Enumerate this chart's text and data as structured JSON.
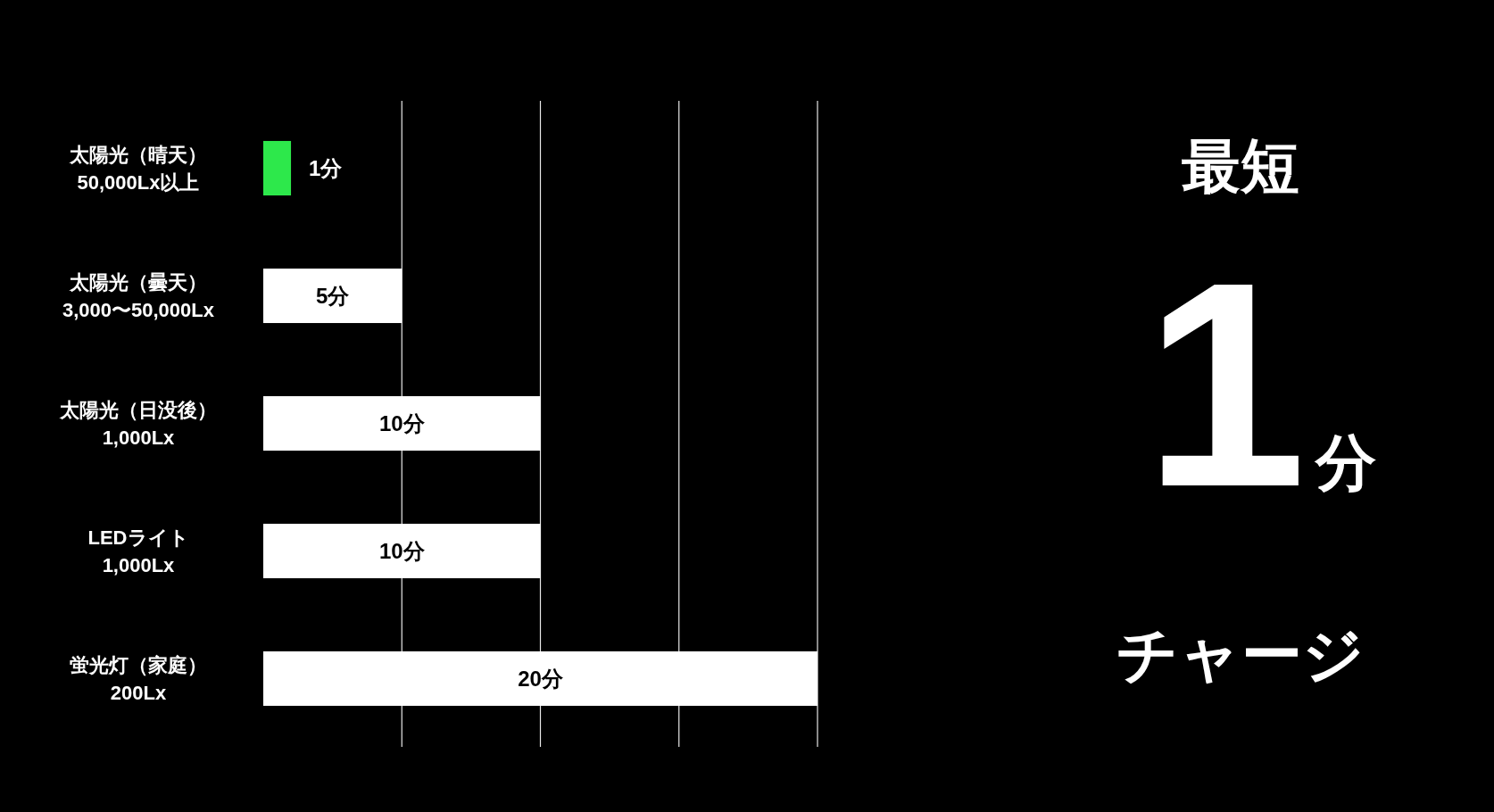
{
  "chart_data": {
    "type": "bar",
    "orientation": "horizontal",
    "categories": [
      "太陽光（晴天）\n50,000Lx以上",
      "太陽光（曇天）\n3,000〜50,000Lx",
      "太陽光（日没後）\n1,000Lx",
      "LEDライト\n1,000Lx",
      "蛍光灯（家庭）\n200Lx"
    ],
    "values": [
      1,
      5,
      10,
      10,
      20
    ],
    "colors": [
      "#2de84b",
      "#ffffff",
      "#ffffff",
      "#ffffff",
      "#ffffff"
    ],
    "value_labels": [
      "1分",
      "5分",
      "10分",
      "10分",
      "20分"
    ],
    "xlim": [
      0,
      20
    ],
    "xticks": [
      {
        "value": 5,
        "label": null
      },
      {
        "value": 10,
        "label": null
      },
      {
        "value": 15,
        "label": null
      },
      {
        "value": 20,
        "label": null
      }
    ],
    "grid": "x",
    "tick_labels": "y",
    "annotations": [
      "最短",
      "1",
      "分",
      "チャージ"
    ]
  }
}
